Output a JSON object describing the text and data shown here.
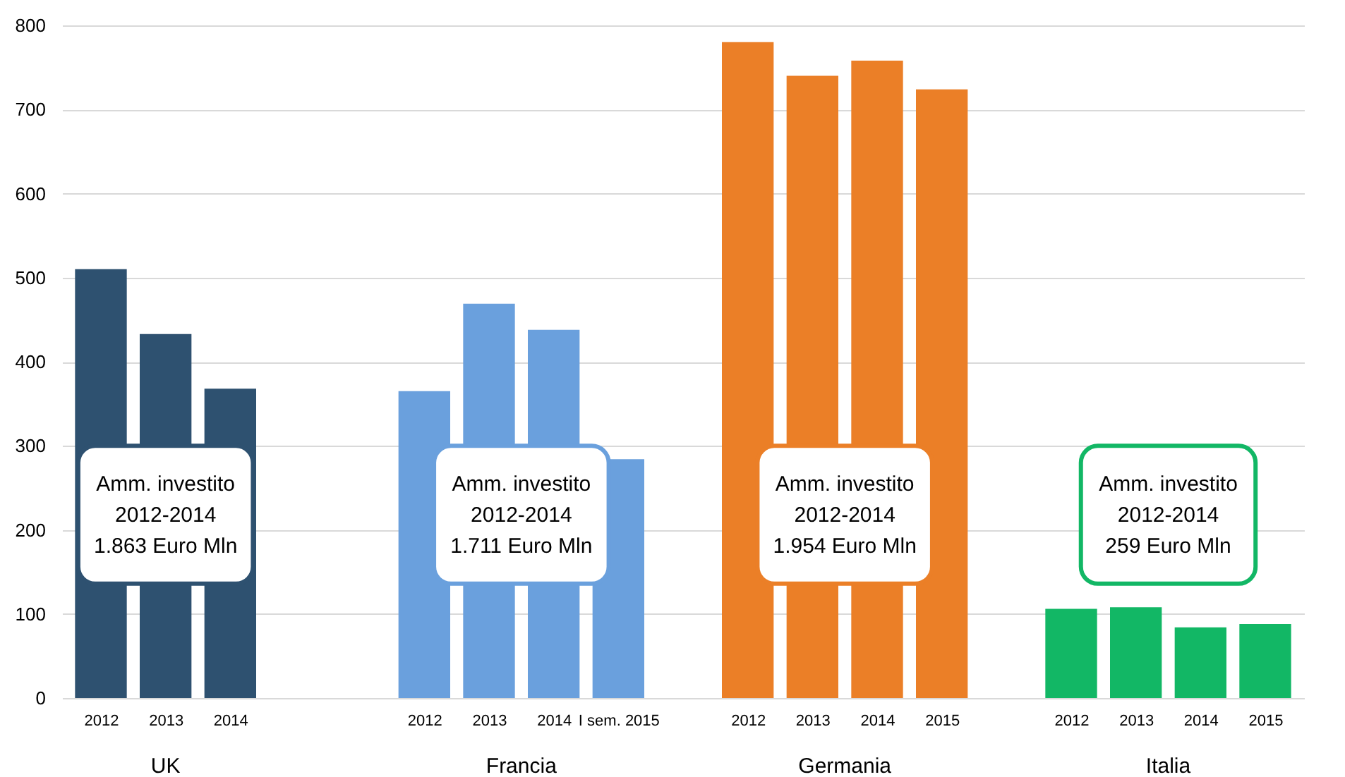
{
  "chart_data": {
    "type": "bar",
    "categories": [
      "2012",
      "2013",
      "2014",
      null,
      null,
      "2012",
      "2013",
      "2014",
      "I sem. 2015",
      null,
      "2012",
      "2013",
      "2014",
      "2015",
      null,
      "2012",
      "2013",
      "2014",
      "2015"
    ],
    "series": [
      {
        "name": "UK",
        "color": "#2e5170",
        "values": [
          510,
          433,
          368,
          null,
          null,
          null,
          null,
          null,
          null,
          null,
          null,
          null,
          null,
          null,
          null,
          null,
          null,
          null,
          null
        ]
      },
      {
        "name": "Francia",
        "color": "#6aa0dd",
        "values": [
          null,
          null,
          null,
          null,
          null,
          365,
          469,
          438,
          284,
          null,
          null,
          null,
          null,
          null,
          null,
          null,
          null,
          null,
          null
        ]
      },
      {
        "name": "Germania",
        "color": "#eb7f27",
        "values": [
          null,
          null,
          null,
          null,
          null,
          null,
          null,
          null,
          null,
          null,
          780,
          740,
          758,
          724,
          null,
          null,
          null,
          null,
          null
        ]
      },
      {
        "name": "Italia",
        "color": "#12b765",
        "values": [
          null,
          null,
          null,
          null,
          null,
          null,
          null,
          null,
          null,
          null,
          null,
          null,
          null,
          null,
          null,
          106,
          108,
          84,
          88
        ]
      }
    ],
    "ylim": [
      0,
      800
    ],
    "yticks": [
      0,
      100,
      200,
      300,
      400,
      500,
      600,
      700,
      800
    ],
    "grid": "y",
    "annotations": [
      "Amm. investito\n2012-2014\n1.863 Euro Mln",
      "Amm. investito\n2012-2014\n1.711 Euro Mln",
      "Amm. investito\n2012-2014\n1.954 Euro Mln",
      "Amm. investito\n2012-2014\n259 Euro Mln"
    ]
  }
}
